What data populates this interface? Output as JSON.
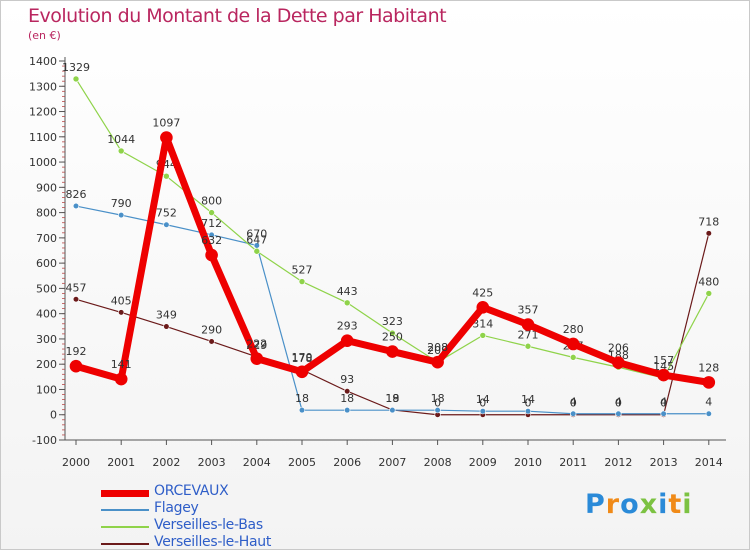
{
  "title": "Evolution du Montant de la Dette par Habitant",
  "unit": "(en €)",
  "logo": {
    "letters": [
      "P",
      "r",
      "o",
      "x",
      "i",
      "t",
      "i"
    ],
    "colors": [
      "#2a8ad8",
      "#f08a18",
      "#2a8ad8",
      "#7cc242",
      "#2a8ad8",
      "#f08a18",
      "#7cc242"
    ]
  },
  "chart_data": {
    "type": "line",
    "x": [
      "2000",
      "2001",
      "2002",
      "2003",
      "2004",
      "2005",
      "2006",
      "2007",
      "2008",
      "2009",
      "2010",
      "2011",
      "2012",
      "2013",
      "2014"
    ],
    "ylim": [
      -100,
      1400
    ],
    "yticks": [
      -100,
      0,
      100,
      200,
      300,
      400,
      500,
      600,
      700,
      800,
      900,
      1000,
      1100,
      1200,
      1300,
      1400
    ],
    "grid": false,
    "legend_position": "bottom-left",
    "series": [
      {
        "name": "Verseilles-le-Haut",
        "color": "#6b1a1a",
        "width": 1.2,
        "marker": 2.8,
        "values": [
          457,
          405,
          349,
          290,
          229,
          178,
          93,
          19,
          0,
          0,
          0,
          0,
          0,
          0,
          718
        ],
        "labels": [
          "457",
          "405",
          "349",
          "290",
          "229",
          "178",
          "93",
          "19",
          "0",
          "0",
          "0",
          "0",
          "0",
          "0",
          "718"
        ]
      },
      {
        "name": "Flagey",
        "color": "#4a90c8",
        "width": 1.2,
        "marker": 2.8,
        "values": [
          826,
          790,
          752,
          712,
          670,
          18,
          18,
          18,
          18,
          14,
          14,
          4,
          4,
          4,
          4
        ],
        "labels": [
          "826",
          "790",
          "752",
          "712",
          "670",
          "18",
          "18",
          "18",
          "18",
          "14",
          "14",
          "4",
          "4",
          "4",
          "4"
        ]
      },
      {
        "name": "Verseilles-le-Bas",
        "color": "#8fd34a",
        "width": 1.2,
        "marker": 3,
        "values": [
          1329,
          1044,
          944,
          800,
          647,
          527,
          443,
          323,
          208,
          314,
          271,
          227,
          188,
          145,
          480
        ],
        "labels": [
          "1329",
          "1044",
          "944",
          "800",
          "647",
          "527",
          "443",
          "323",
          "208",
          "314",
          "271",
          "227",
          "188",
          "145",
          "480"
        ]
      },
      {
        "name": "ORCEVAUX",
        "color": "#ee0000",
        "width": 7,
        "marker": 6,
        "values": [
          192,
          141,
          1097,
          632,
          222,
          170,
          293,
          250,
          208,
          425,
          357,
          280,
          206,
          157,
          128
        ],
        "labels": [
          "192",
          "141",
          "1097",
          "632",
          "222",
          "170",
          "293",
          "250",
          "208",
          "425",
          "357",
          "280",
          "206",
          "157",
          "128"
        ]
      }
    ],
    "legend_order": [
      "ORCEVAUX",
      "Flagey",
      "Verseilles-le-Bas",
      "Verseilles-le-Haut"
    ]
  }
}
